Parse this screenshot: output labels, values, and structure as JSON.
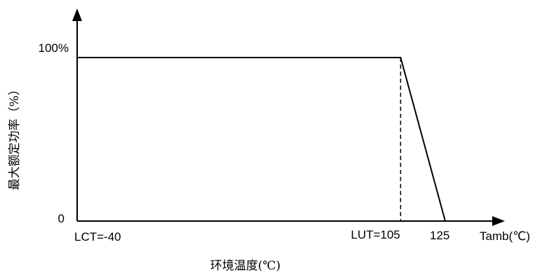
{
  "chart_data": {
    "type": "line",
    "title": "",
    "xlabel": "环境温度(℃)",
    "ylabel": "最大额定功率（%）",
    "axis_end_label": "Tamb(℃)",
    "y_ticks": [
      {
        "value": 0,
        "label": "0"
      },
      {
        "value": 100,
        "label": "100%"
      }
    ],
    "x_ticks": [
      {
        "value": -40,
        "label": "LCT=-40"
      },
      {
        "value": 105,
        "label": "LUT=105"
      },
      {
        "value": 125,
        "label": "125"
      }
    ],
    "series": [
      {
        "x": [
          -40,
          105,
          125
        ],
        "y": [
          100,
          100,
          0
        ]
      }
    ],
    "xlim": [
      -40,
      125
    ],
    "ylim": [
      0,
      100
    ],
    "grid": false,
    "colors": {
      "line": "#000000",
      "axis": "#000000"
    }
  }
}
